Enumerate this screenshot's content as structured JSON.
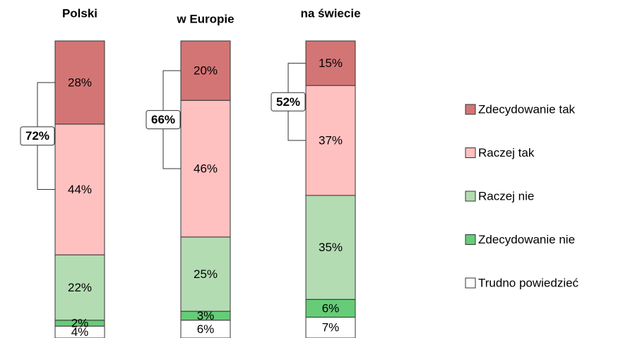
{
  "chart_data": {
    "type": "stacked-bar",
    "categories": [
      "Polski",
      "w Europie",
      "na świecie"
    ],
    "series": [
      {
        "name": "Zdecydowanie tak",
        "color": "#d47575",
        "values": [
          28,
          20,
          15
        ],
        "value_labels": [
          "28%",
          "20%",
          "15%"
        ]
      },
      {
        "name": "Raczej tak",
        "color": "#ffc0c0",
        "values": [
          44,
          46,
          37
        ],
        "value_labels": [
          "44%",
          "46%",
          "37%"
        ]
      },
      {
        "name": "Raczej nie",
        "color": "#b3dcb3",
        "values": [
          22,
          25,
          35
        ],
        "value_labels": [
          "22%",
          "25%",
          "35%"
        ]
      },
      {
        "name": "Zdecydowanie nie",
        "color": "#66cc77",
        "values": [
          2,
          3,
          6
        ],
        "value_labels": [
          "2%",
          "3%",
          "6%"
        ]
      },
      {
        "name": "Trudno powiedzieć",
        "color": "#ffffff",
        "values": [
          4,
          6,
          7
        ],
        "value_labels": [
          "4%",
          "6%",
          "7%"
        ]
      }
    ],
    "totals": {
      "values": [
        72,
        66,
        52
      ],
      "value_labels": [
        "72%",
        "66%",
        "52%"
      ]
    }
  }
}
